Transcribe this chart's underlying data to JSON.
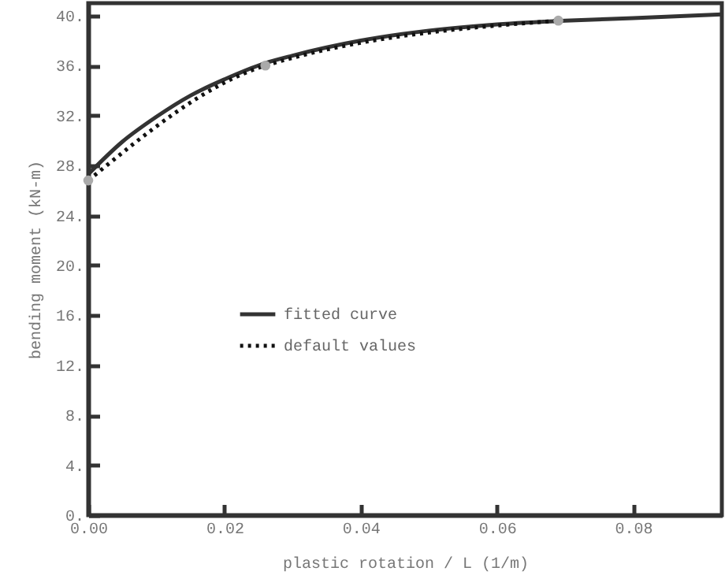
{
  "chart_data": {
    "type": "line",
    "xlabel": "plastic rotation / L (1/m)",
    "ylabel": "bending moment (kN-m)",
    "xlim": [
      0,
      0.093
    ],
    "ylim": [
      0,
      41
    ],
    "xticks": [
      {
        "value": 0,
        "label": "0.00"
      },
      {
        "value": 0.02,
        "label": "0.02"
      },
      {
        "value": 0.04,
        "label": "0.04"
      },
      {
        "value": 0.06,
        "label": "0.06"
      },
      {
        "value": 0.08,
        "label": "0.08"
      }
    ],
    "yticks": [
      {
        "value": 0,
        "label": "0."
      },
      {
        "value": 4,
        "label": "4."
      },
      {
        "value": 8,
        "label": "8."
      },
      {
        "value": 12,
        "label": "12."
      },
      {
        "value": 16,
        "label": "16."
      },
      {
        "value": 20,
        "label": "20."
      },
      {
        "value": 24,
        "label": "24."
      },
      {
        "value": 28,
        "label": "28."
      },
      {
        "value": 32,
        "label": "32."
      },
      {
        "value": 36,
        "label": "36."
      },
      {
        "value": 40,
        "label": "40."
      }
    ],
    "grid": false,
    "legend": "center",
    "series": [
      {
        "name": "fitted curve",
        "color": "#333333",
        "line_style": "solid",
        "marker": "none",
        "x": [
          0,
          0.005,
          0.01,
          0.015,
          0.02,
          0.026,
          0.03,
          0.04,
          0.05,
          0.06,
          0.07,
          0.08,
          0.093
        ],
        "values": [
          27.3,
          29.9,
          31.9,
          33.6,
          34.9,
          36.2,
          36.8,
          38.0,
          38.8,
          39.3,
          39.6,
          39.8,
          40.1
        ]
      },
      {
        "name": "default values",
        "color": "#111111",
        "colors": [
          "#aaaaaa",
          "#aaaaaa",
          "#aaaaaa"
        ],
        "line_style": "dotted",
        "marker": "circle",
        "x": [
          0,
          0.026,
          0.069
        ],
        "values": [
          26.8,
          36.0,
          39.6
        ]
      }
    ]
  }
}
